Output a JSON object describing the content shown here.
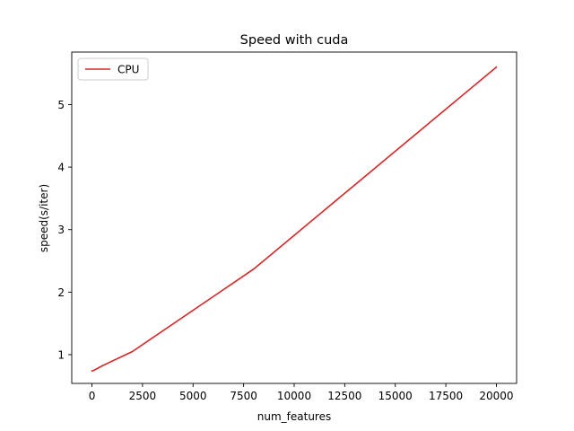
{
  "chart_data": {
    "type": "line",
    "title": "Speed with cuda",
    "xlabel": "num_features",
    "ylabel": "speed(s/iter)",
    "xlim": [
      -1000,
      21000
    ],
    "ylim": [
      0.54,
      5.84
    ],
    "xticks": [
      0,
      2500,
      5000,
      7500,
      10000,
      12500,
      15000,
      17500,
      20000
    ],
    "yticks": [
      1,
      2,
      3,
      4,
      5
    ],
    "grid": false,
    "legend": {
      "position": "top-left"
    },
    "series": [
      {
        "name": "CPU",
        "color": "#d62728",
        "x": [
          0,
          100,
          500,
          2000,
          8000,
          20000
        ],
        "y": [
          0.74,
          0.75,
          0.82,
          1.05,
          2.37,
          5.6
        ]
      }
    ]
  }
}
